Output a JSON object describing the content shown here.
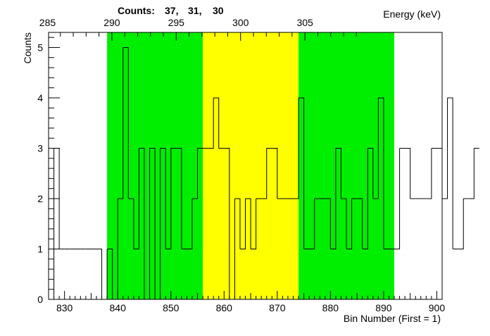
{
  "header": {
    "counts_label": "Counts:",
    "counts_values": [
      "37,",
      "31,",
      "30"
    ]
  },
  "chart_data": {
    "type": "histogram",
    "xlabel": "Bin Number (First = 1)",
    "ylabel": "Counts",
    "x2label": "Energy (keV)",
    "xlim": [
      827,
      901
    ],
    "ylim": [
      0,
      5.3
    ],
    "x_ticks": [
      830,
      840,
      850,
      860,
      870,
      880,
      890,
      900
    ],
    "x_tick_labels": [
      "830",
      "840",
      "850",
      "860",
      "870",
      "880",
      "890",
      "900"
    ],
    "y_ticks": [
      0,
      1,
      2,
      3,
      4,
      5
    ],
    "y_tick_labels": [
      "0",
      "1",
      "2",
      "3",
      "4",
      "5"
    ],
    "energy_ticks_bin": [
      826.8,
      838.9,
      851.0,
      863.1,
      875.2,
      887.3
    ],
    "energy_tick_labels": [
      "285",
      "290",
      "295",
      "300",
      "305"
    ],
    "energy_tick_positions_keV": [
      285,
      290,
      295,
      300,
      305
    ],
    "energy_per_bin": 0.4132,
    "energy_offset_bin": 838.9,
    "energy_offset_keV": 290,
    "regions": [
      {
        "name": "background-left",
        "from": 838,
        "to": 856,
        "color": "#00ee00"
      },
      {
        "name": "peak",
        "from": 856,
        "to": 874,
        "color": "#ffff00"
      },
      {
        "name": "background-right",
        "from": 874,
        "to": 892,
        "color": "#00ee00"
      }
    ],
    "bin_start": 828,
    "bin_width": 1,
    "values": [
      3,
      1,
      1,
      1,
      1,
      1,
      1,
      1,
      1,
      0,
      1,
      0,
      2,
      5,
      2,
      1,
      3,
      0,
      3,
      0,
      3,
      1,
      3,
      3,
      1,
      1,
      2,
      3,
      3,
      3,
      4,
      3,
      3,
      0,
      2,
      1,
      2,
      1,
      2,
      2,
      3,
      3,
      2,
      2,
      2,
      2,
      4,
      1,
      1,
      2,
      2,
      2,
      1,
      3,
      2,
      1,
      2,
      2,
      1,
      3,
      2,
      4,
      1,
      1,
      1,
      3,
      3,
      2,
      2,
      2,
      2,
      3,
      3,
      2,
      4,
      1,
      1,
      2,
      2,
      3
    ]
  }
}
